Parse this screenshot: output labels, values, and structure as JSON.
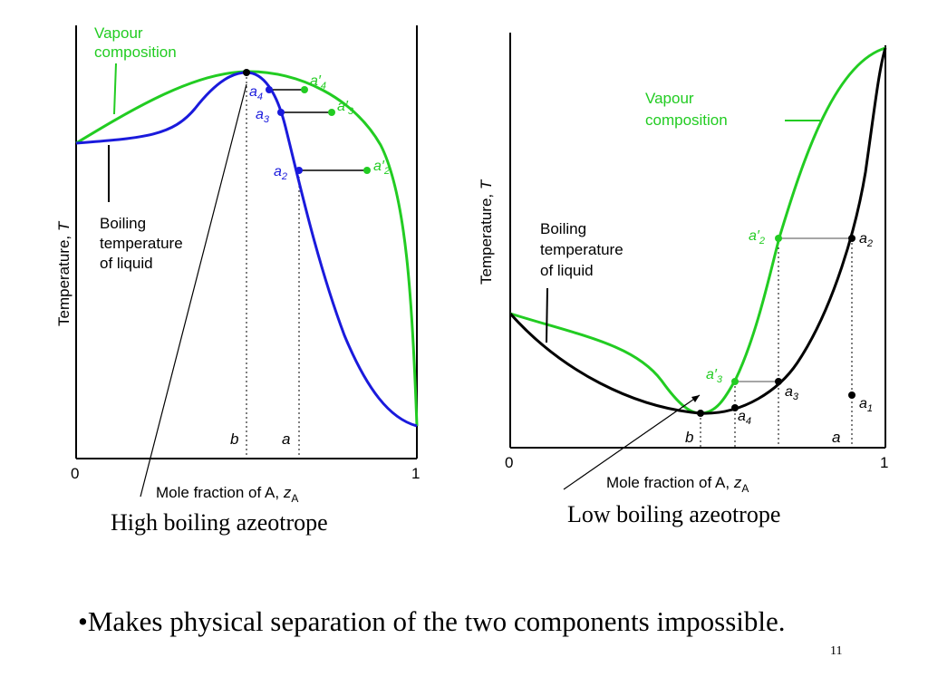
{
  "left_diagram": {
    "ylabel": "Temperature,",
    "ylabel_sym": "T",
    "xlabel": "Mole fraction of A,",
    "xlabel_sym": "z",
    "xlabel_sub": "A",
    "tick0": "0",
    "tick1": "1",
    "mark_b": "b",
    "mark_a": "a",
    "vapour_label": [
      "Vapour",
      "composition"
    ],
    "liquid_label": [
      "Boiling",
      "temperature",
      "of  liquid"
    ],
    "points": {
      "a2": "a",
      "a2s": "2",
      "a3": "a",
      "a3s": "3",
      "a4": "a",
      "a4s": "4",
      "a2p": "a′",
      "a2ps": "2",
      "a3p": "a′",
      "a3ps": "3",
      "a4p": "a′",
      "a4ps": "4"
    },
    "caption": "High boiling azeotrope"
  },
  "right_diagram": {
    "ylabel": "Temperature,",
    "ylabel_sym": "T",
    "xlabel": "Mole fraction of A,",
    "xlabel_sym": "z",
    "xlabel_sub": "A",
    "tick0": "0",
    "tick1": "1",
    "mark_b": "b",
    "mark_a": "a",
    "vapour_label": [
      "Vapour",
      "composition"
    ],
    "liquid_label": [
      "Boiling",
      "temperature",
      "of  liquid"
    ],
    "points": {
      "a1": "a",
      "a1s": "1",
      "a2": "a",
      "a2s": "2",
      "a3": "a",
      "a3s": "3",
      "a4": "a",
      "a4s": "4",
      "a2p": "a′",
      "a2ps": "2",
      "a3p": "a′",
      "a3ps": "3"
    },
    "caption": "Low boiling azeotrope"
  },
  "bullet_text": "•Makes physical separation of the two components impossible.",
  "page_number": "11",
  "colors": {
    "vapour": "#22cc22",
    "liquid_left": "#1a1adc",
    "liquid_right": "#000000",
    "axis": "#000000"
  }
}
